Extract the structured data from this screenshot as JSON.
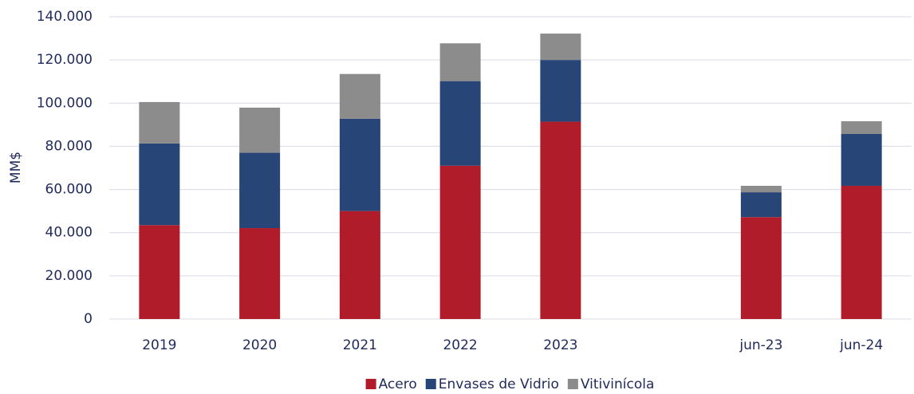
{
  "chart_data": {
    "type": "stacked_bar",
    "y_label": "MM$",
    "categories": [
      "2019",
      "2020",
      "2021",
      "2022",
      "2023",
      null,
      "jun-23",
      "jun-24"
    ],
    "series": [
      {
        "name": "Acero",
        "color": "#b01c2a",
        "values": [
          43500,
          42100,
          50000,
          71000,
          91400,
          null,
          47200,
          61700
        ]
      },
      {
        "name": "Envases de Vidrio",
        "color": "#274577",
        "values": [
          37800,
          34900,
          42800,
          39200,
          28600,
          null,
          11500,
          24000
        ]
      },
      {
        "name": "Vitivinícola",
        "color": "#8c8c8c",
        "values": [
          19200,
          20900,
          20700,
          17500,
          12200,
          null,
          3000,
          5900
        ]
      }
    ],
    "ylim": [
      0,
      140000
    ],
    "yticks": [
      0,
      {
        "value": 20000,
        "label": "20.000"
      },
      {
        "value": 40000,
        "label": "40.000"
      },
      {
        "value": 60000,
        "label": "60.000"
      },
      {
        "value": 80000,
        "label": "80.000"
      },
      {
        "value": 100000,
        "label": "100.000"
      },
      {
        "value": 120000,
        "label": "120.000"
      },
      {
        "value": 140000,
        "label": "140.000"
      }
    ],
    "grid": true,
    "legend": "bottom"
  }
}
